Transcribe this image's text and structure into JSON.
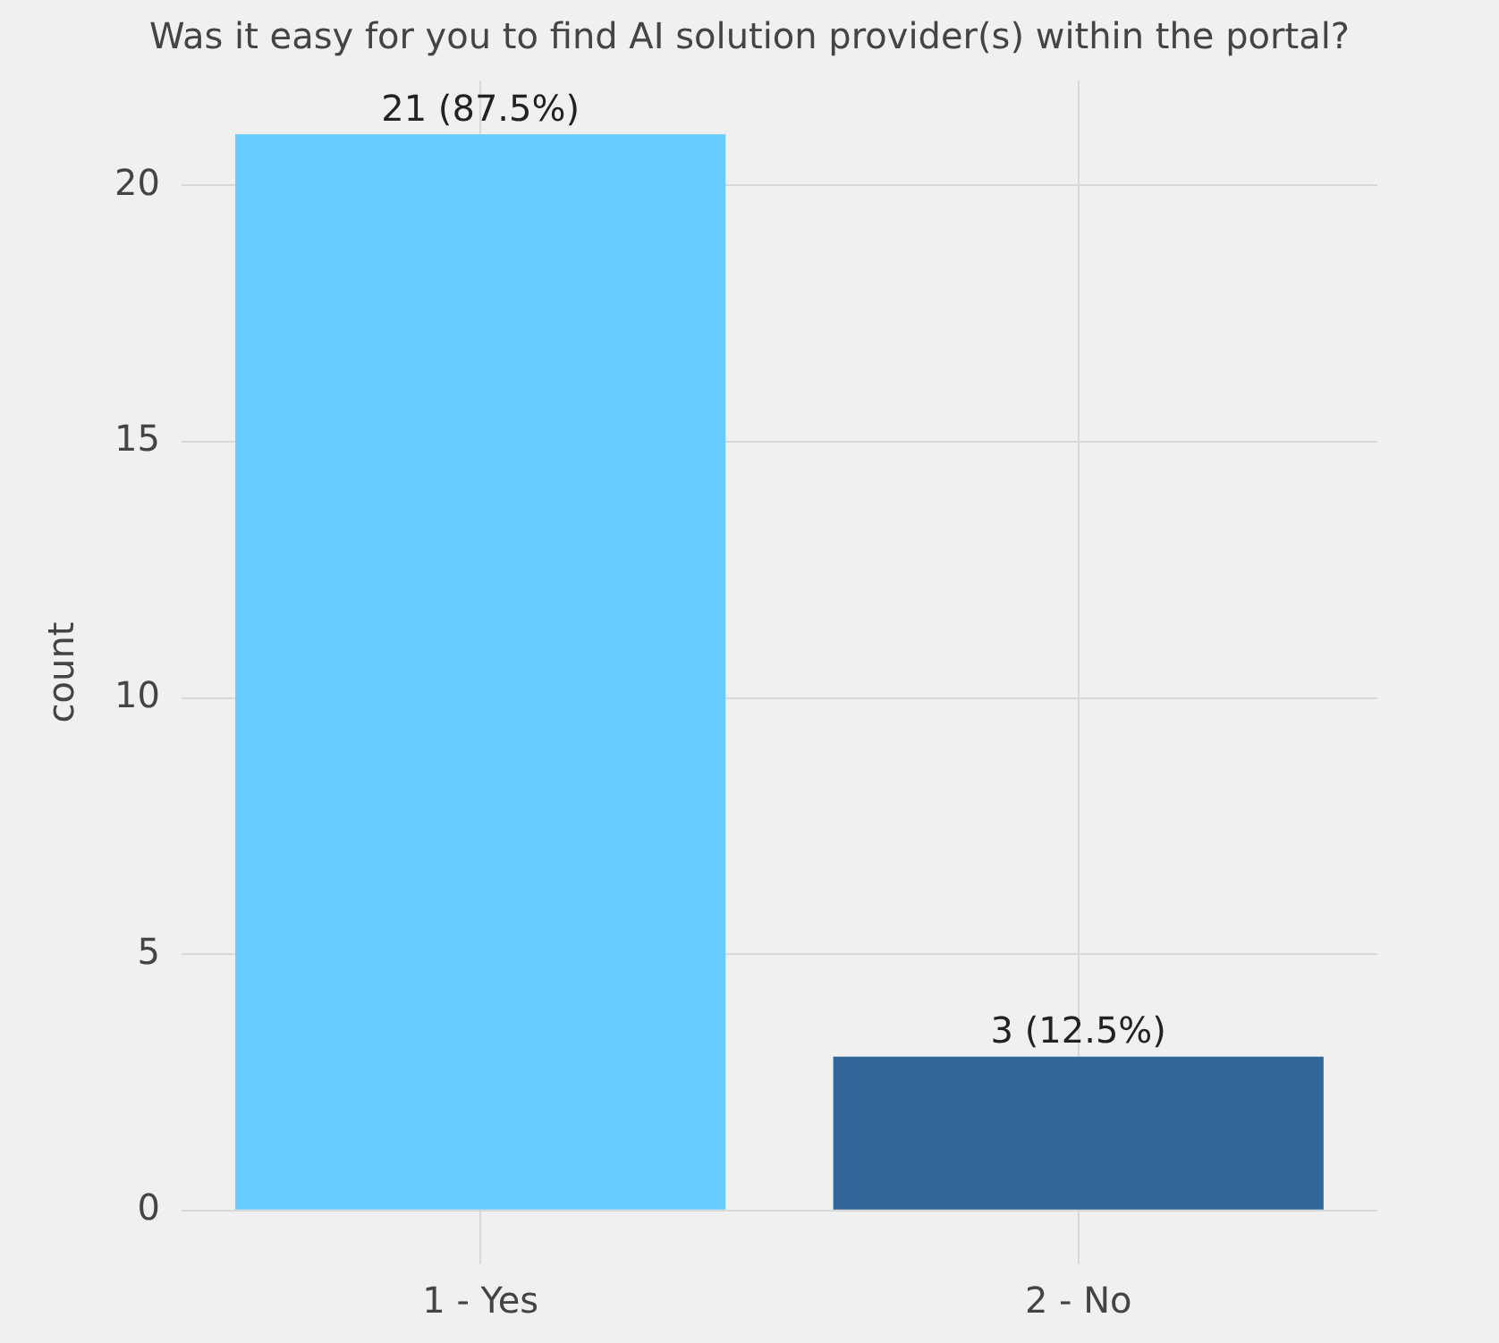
{
  "chart_data": {
    "type": "bar",
    "title": "Was it easy for you to find AI solution provider(s) within the portal?",
    "ylabel": "count",
    "categories": [
      "1 - Yes",
      "2 - No"
    ],
    "values": [
      21,
      3
    ],
    "colors": [
      "#66ccff",
      "#336699"
    ],
    "value_labels": [
      "21 (87.5%)",
      "3 (12.5%)"
    ],
    "ylim": [
      -1.05,
      22.05
    ],
    "yticks": [
      0,
      5,
      10,
      15,
      20
    ],
    "grid": true
  }
}
